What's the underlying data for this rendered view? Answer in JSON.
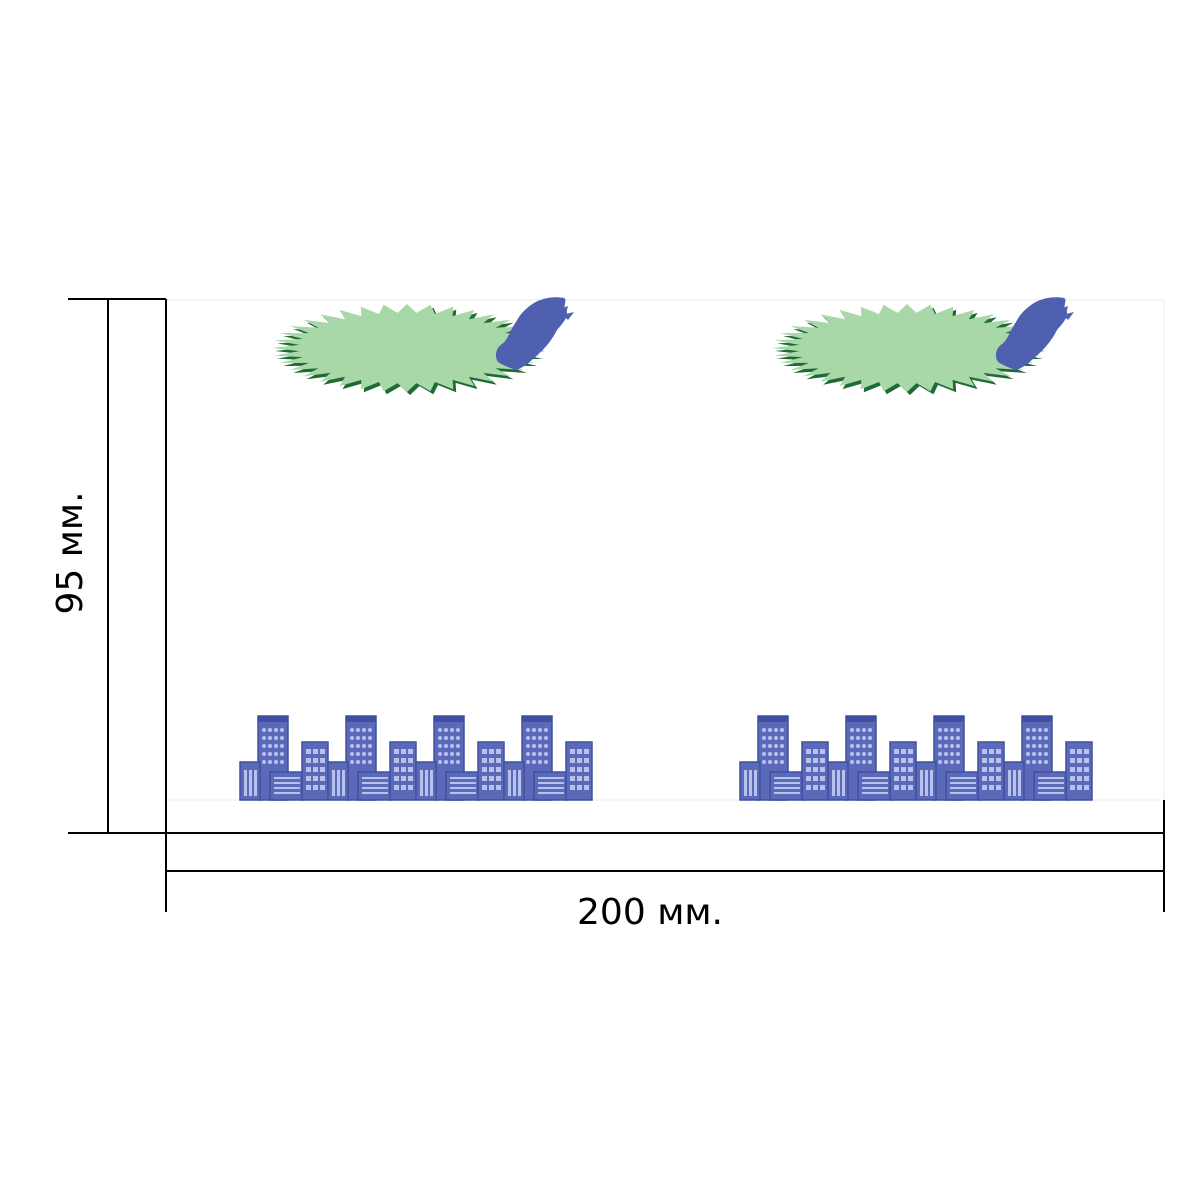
{
  "dimensions": {
    "height_label": "95 мм.",
    "width_label": "200 мм."
  },
  "palette": {
    "line": "#000000",
    "panel_border": "#d8d8d8",
    "cloud_fill": "#a8d8a8",
    "cloud_outline": "#1f6b35",
    "blue_smudge": "#5060b0",
    "building_fill": "#5a6ab8",
    "building_dark": "#4050a0",
    "building_window": "#b8c0ec"
  },
  "illustration": {
    "motif_count": 2,
    "buildings_per_motif": 4,
    "icons": [
      "spiky-cloud-icon",
      "blue-smudge-icon",
      "city-buildings-icon"
    ]
  }
}
